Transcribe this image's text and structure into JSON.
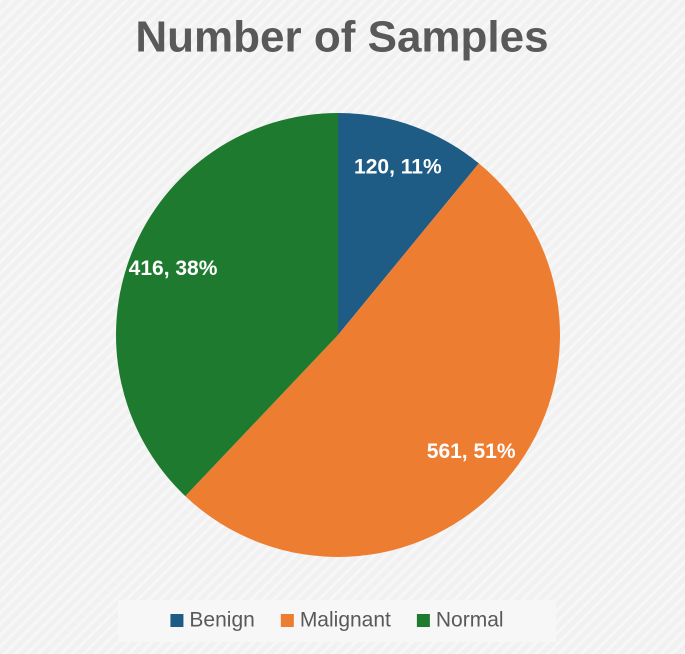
{
  "chart_data": {
    "type": "pie",
    "title": "Number of Samples",
    "categories": [
      "Benign",
      "Malignant",
      "Normal"
    ],
    "values": [
      120,
      561,
      416
    ],
    "value_labels": [
      "120, 11%",
      "561, 51%",
      "416, 38%"
    ],
    "colors": [
      "#1f5c85",
      "#ed7d31",
      "#1e7a2e"
    ],
    "legend": "bottom"
  }
}
